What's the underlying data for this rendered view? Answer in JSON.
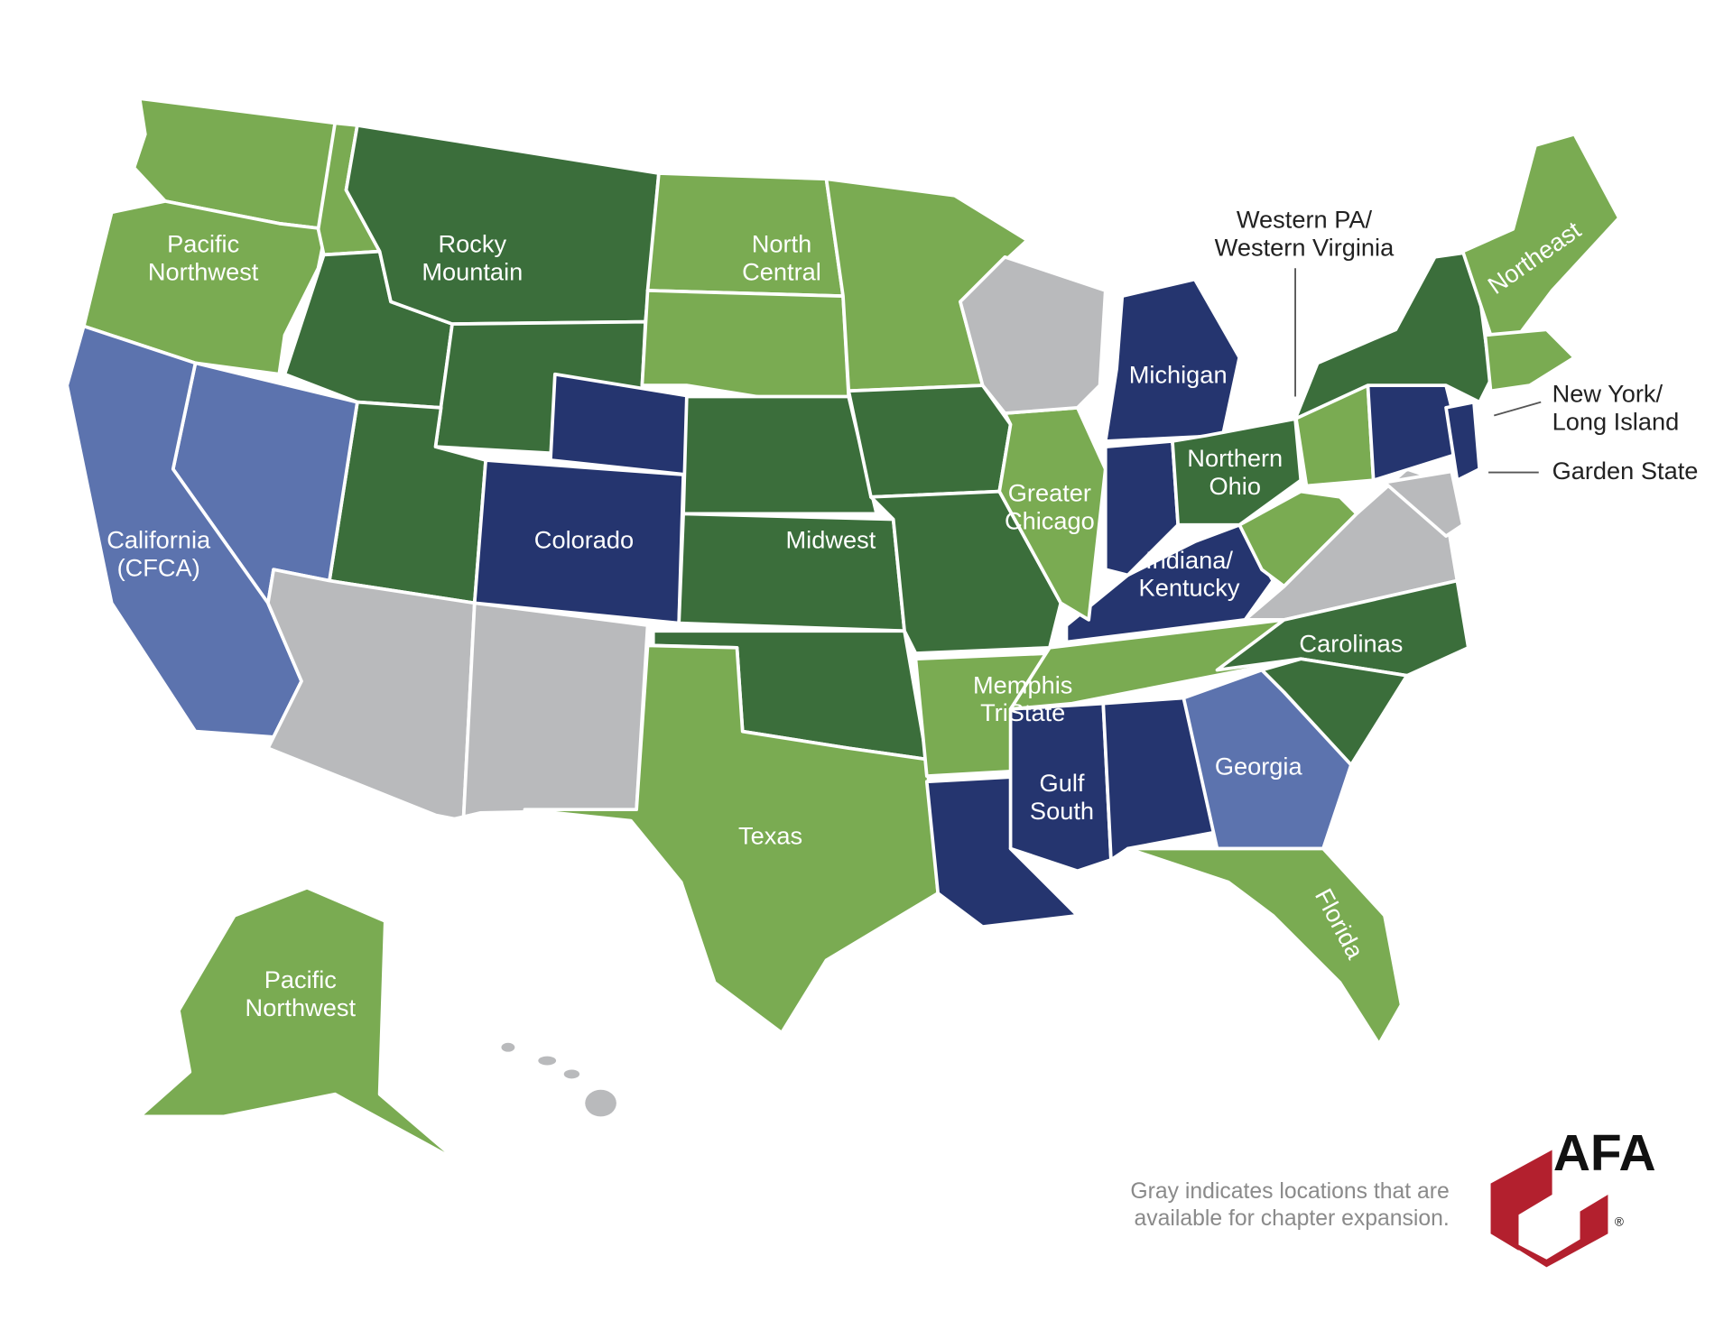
{
  "labels": [
    {
      "lines": [
        "Pacific",
        "Northwest"
      ]
    },
    {
      "lines": [
        "Rocky",
        "Mountain"
      ]
    },
    {
      "lines": [
        "North",
        "Central"
      ]
    },
    {
      "lines": [
        "Western PA/",
        "Western Virginia"
      ]
    },
    {
      "lines": [
        "Northeast"
      ]
    },
    {
      "lines": [
        "Michigan"
      ]
    },
    {
      "lines": [
        "New York/",
        "Long Island"
      ]
    },
    {
      "lines": [
        "Garden State"
      ]
    },
    {
      "lines": [
        "California",
        "(CFCA)"
      ]
    },
    {
      "lines": [
        "Colorado"
      ]
    },
    {
      "lines": [
        "Midwest"
      ]
    },
    {
      "lines": [
        "Greater",
        "Chicago"
      ]
    },
    {
      "lines": [
        "Northern",
        "Ohio"
      ]
    },
    {
      "lines": [
        "Indiana/",
        "Kentucky"
      ]
    },
    {
      "lines": [
        "Carolinas"
      ]
    },
    {
      "lines": [
        "Memphis",
        "TriState"
      ]
    },
    {
      "lines": [
        "Gulf",
        "South"
      ]
    },
    {
      "lines": [
        "Georgia"
      ]
    },
    {
      "lines": [
        "Texas"
      ]
    },
    {
      "lines": [
        "Florida"
      ]
    },
    {
      "lines": [
        "Pacific",
        "Northwest"
      ]
    }
  ],
  "note": {
    "lines": [
      "Gray indicates locations that are",
      "available for chapter expansion."
    ]
  },
  "logo": {
    "text": "AFA",
    "mark": "®"
  }
}
